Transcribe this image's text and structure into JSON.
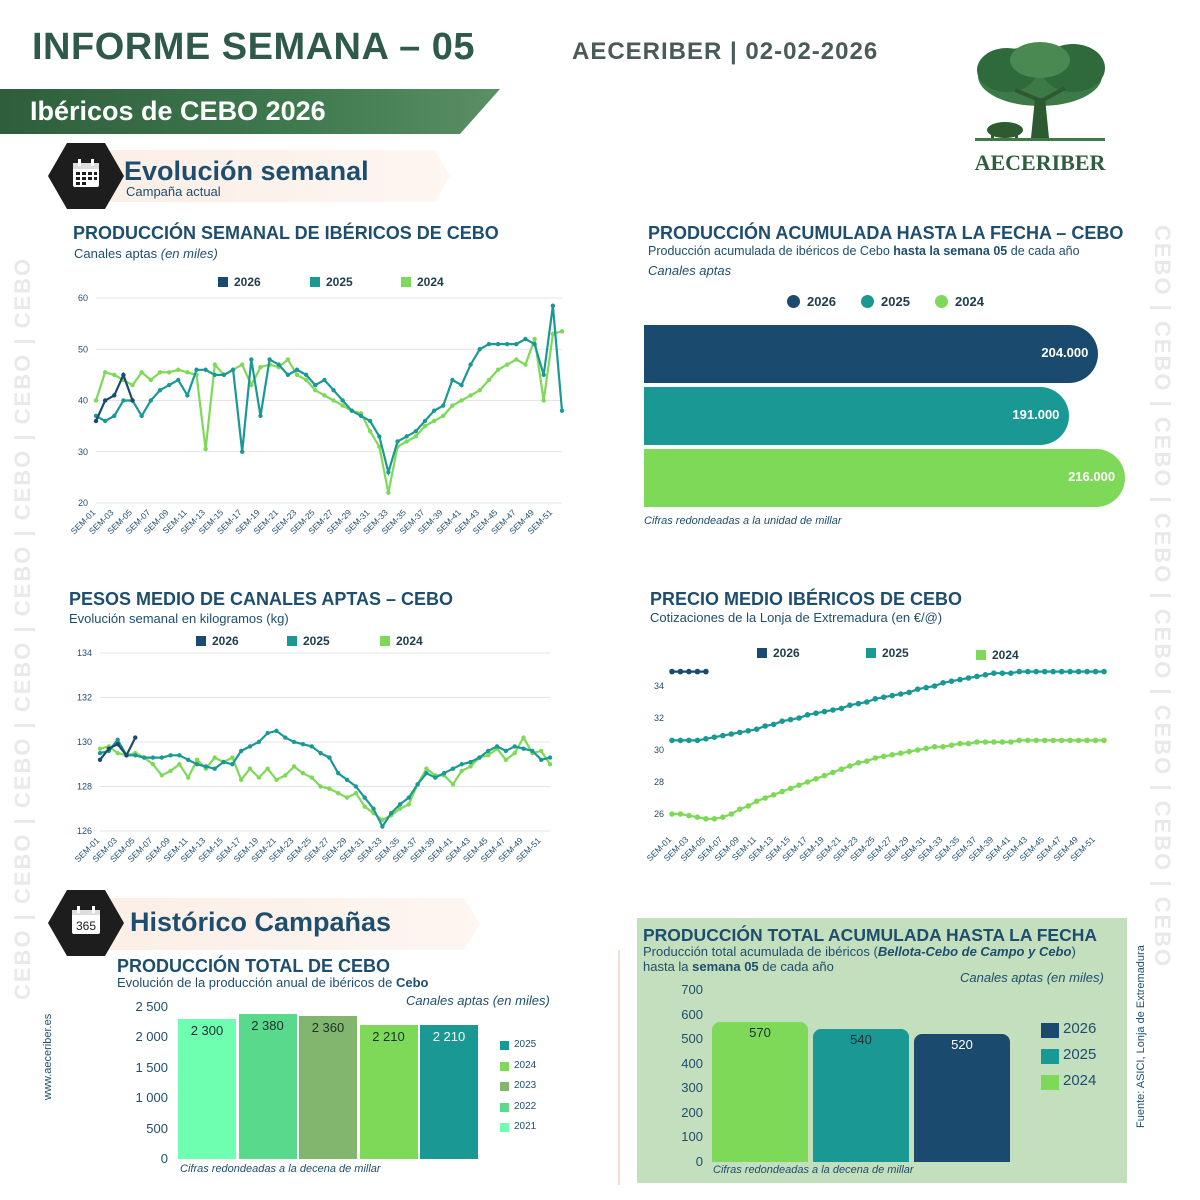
{
  "header": {
    "title": "INFORME SEMANA – 05",
    "org_date": "AECERIBER | 02-02-2026",
    "banner": "Ibéricos de CEBO 2026",
    "logo_text": "AECERIBER"
  },
  "sections": {
    "weekly": {
      "title": "Evolución semanal",
      "subtitle": "Campaña actual"
    },
    "history": {
      "title": "Histórico Campañas"
    }
  },
  "side": {
    "watermark": "CEBO | CEBO | CEBO | CEBO | CEBO | CEBO | CEBO | CEBO",
    "website": "www.aeceriber.es",
    "source": "Fuente: ASICI, Lonja de Extremadura"
  },
  "colors": {
    "c2026": "#1a4a6e",
    "c2025": "#1a9994",
    "c2024": "#7dd957",
    "c2023": "#82b56d",
    "c2022": "#59d98c",
    "c2021": "#6effb0"
  },
  "week_labels": [
    "SEM-01",
    "SEM-03",
    "SEM-05",
    "SEM-07",
    "SEM-09",
    "SEM-11",
    "SEM-13",
    "SEM-15",
    "SEM-17",
    "SEM-19",
    "SEM-21",
    "SEM-23",
    "SEM-25",
    "SEM-27",
    "SEM-29",
    "SEM-31",
    "SEM-33",
    "SEM-35",
    "SEM-37",
    "SEM-39",
    "SEM-41",
    "SEM-43",
    "SEM-45",
    "SEM-47",
    "SEM-49",
    "SEM-51"
  ],
  "chart_data": [
    {
      "id": "produccion_semanal",
      "type": "line",
      "title": "PRODUCCIÓN SEMANAL DE IBÉRICOS DE CEBO",
      "subtitle": "Canales aptas",
      "subtitle_italic": "(en miles)",
      "ylim": [
        20,
        60
      ],
      "yticks": [
        20,
        30,
        40,
        50,
        60
      ],
      "grid": true,
      "legend": "top",
      "series": [
        {
          "name": "2026",
          "values": [
            36,
            40,
            41,
            45,
            40
          ]
        },
        {
          "name": "2025",
          "values": [
            37,
            36,
            37,
            40,
            40,
            37,
            40,
            42,
            43,
            44,
            41,
            46,
            46,
            45,
            45,
            46,
            30,
            48,
            37,
            48,
            47,
            45,
            46,
            45,
            43,
            44,
            42,
            40,
            38,
            37,
            36,
            33,
            26,
            32,
            33,
            34,
            36,
            38,
            39,
            44,
            43,
            47,
            50,
            51,
            51,
            51,
            51,
            52,
            51,
            45,
            58.5,
            38
          ]
        },
        {
          "name": "2024",
          "values": [
            40,
            45.5,
            45,
            44,
            43,
            45.5,
            44,
            45.5,
            45.5,
            46,
            45.5,
            45,
            30.5,
            47,
            45,
            46,
            47,
            43,
            46.5,
            47,
            46.5,
            48,
            45,
            44,
            42,
            41,
            40,
            39,
            38,
            37.5,
            34,
            31,
            22,
            31,
            32,
            33,
            35,
            36,
            37,
            39,
            40,
            41,
            42,
            44,
            46,
            47,
            48,
            47,
            52,
            40,
            53,
            53.5
          ]
        }
      ]
    },
    {
      "id": "produccion_acumulada",
      "type": "bar",
      "title": "PRODUCCIÓN ACUMULADA HASTA LA FECHA – CEBO",
      "subtitle_pre": "Producción acumulada de ibéricos de Cebo ",
      "subtitle_bold": "hasta la semana 05",
      "subtitle_post": " de cada año",
      "subtitle2": "Canales aptas",
      "categories": [
        "2026",
        "2025",
        "2024"
      ],
      "values": [
        204000,
        191000,
        216000
      ],
      "labels": [
        "204.000",
        "191.000",
        "216.000"
      ],
      "note": "Cifras redondeadas a la unidad de millar"
    },
    {
      "id": "pesos_medio",
      "type": "line",
      "title": "PESOS MEDIO DE CANALES APTAS – CEBO",
      "subtitle": "Evolución semanal en kilogramos (kg)",
      "ylim": [
        126,
        134
      ],
      "yticks": [
        126,
        128,
        130,
        132,
        134
      ],
      "grid": true,
      "legend": "top",
      "series": [
        {
          "name": "2026",
          "values": [
            129.2,
            129.7,
            129.9,
            129.4,
            130.2
          ]
        },
        {
          "name": "2025",
          "values": [
            129.5,
            129.6,
            130.1,
            129.4,
            129.4,
            129.3,
            129.3,
            129.3,
            129.4,
            129.4,
            129.2,
            129.0,
            128.9,
            128.8,
            129.1,
            129.0,
            129.6,
            129.8,
            130.0,
            130.4,
            130.5,
            130.2,
            130.0,
            129.9,
            129.8,
            129.5,
            129.3,
            128.6,
            128.3,
            128.0,
            127.5,
            127.0,
            126.2,
            126.8,
            127.2,
            127.5,
            128.1,
            128.6,
            128.4,
            128.6,
            128.8,
            129.0,
            129.1,
            129.3,
            129.6,
            129.8,
            129.6,
            129.8,
            129.7,
            129.6,
            129.2,
            129.3
          ]
        },
        {
          "name": "2024",
          "values": [
            129.7,
            129.8,
            129.5,
            129.4,
            129.5,
            129.3,
            129.0,
            128.5,
            128.7,
            129.0,
            128.4,
            129.2,
            128.8,
            129.3,
            129.1,
            129.3,
            128.3,
            128.8,
            128.4,
            128.8,
            128.3,
            128.5,
            128.9,
            128.6,
            128.4,
            128.0,
            127.9,
            127.7,
            127.5,
            127.7,
            127.1,
            126.8,
            126.5,
            126.7,
            127.0,
            127.2,
            128.1,
            128.8,
            128.5,
            128.5,
            128.1,
            128.7,
            128.9,
            129.3,
            129.4,
            129.7,
            129.2,
            129.5,
            130.2,
            129.5,
            129.6,
            129.0
          ]
        }
      ]
    },
    {
      "id": "precio_medio",
      "type": "line",
      "title": "PRECIO MEDIO IBÉRICOS DE CEBO",
      "subtitle": "Cotizaciones de la Lonja de Extremadura (en €/@)",
      "ylim": [
        25,
        35.5
      ],
      "yticks": [
        26,
        28,
        30,
        32,
        34
      ],
      "grid": false,
      "legend": "top",
      "series": [
        {
          "name": "2026",
          "values": [
            34.9,
            34.9,
            34.9,
            34.9,
            34.9
          ]
        },
        {
          "name": "2025",
          "values": [
            30.6,
            30.6,
            30.6,
            30.6,
            30.7,
            30.8,
            30.9,
            31.0,
            31.1,
            31.2,
            31.3,
            31.5,
            31.6,
            31.8,
            31.9,
            32.0,
            32.2,
            32.3,
            32.4,
            32.5,
            32.6,
            32.8,
            32.9,
            33.0,
            33.2,
            33.3,
            33.4,
            33.5,
            33.6,
            33.8,
            33.9,
            34.0,
            34.2,
            34.3,
            34.4,
            34.5,
            34.6,
            34.7,
            34.8,
            34.8,
            34.8,
            34.9,
            34.9,
            34.9,
            34.9,
            34.9,
            34.9,
            34.9,
            34.9,
            34.9,
            34.9,
            34.9
          ]
        },
        {
          "name": "2024",
          "values": [
            26.0,
            26.0,
            25.9,
            25.8,
            25.7,
            25.7,
            25.8,
            26.0,
            26.3,
            26.5,
            26.8,
            27.0,
            27.2,
            27.4,
            27.6,
            27.8,
            28.0,
            28.2,
            28.4,
            28.6,
            28.8,
            29.0,
            29.2,
            29.3,
            29.5,
            29.6,
            29.7,
            29.8,
            29.9,
            30.0,
            30.1,
            30.2,
            30.2,
            30.3,
            30.4,
            30.4,
            30.5,
            30.5,
            30.5,
            30.5,
            30.5,
            30.6,
            30.6,
            30.6,
            30.6,
            30.6,
            30.6,
            30.6,
            30.6,
            30.6,
            30.6,
            30.6
          ]
        }
      ]
    },
    {
      "id": "produccion_total_cebo",
      "type": "bar",
      "title": "PRODUCCIÓN TOTAL DE CEBO",
      "subtitle_pre": "Evolución de la producción anual de ibéricos de ",
      "subtitle_bold": "Cebo",
      "unit_label": "Canales aptas (en miles)",
      "categories": [
        "2021",
        "2022",
        "2023",
        "2024",
        "2025"
      ],
      "values": [
        2300,
        2380,
        2360,
        2210,
        2210
      ],
      "labels": [
        "2 300",
        "2 380",
        "2 360",
        "2 210",
        "2 210"
      ],
      "ylim": [
        0,
        2500
      ],
      "yticks": [
        "0",
        "500",
        "1 000",
        "1 500",
        "2 000",
        "2 500"
      ],
      "legend_order": [
        "2025",
        "2024",
        "2023",
        "2022",
        "2021"
      ],
      "note": "Cifras redondeadas a la decena de millar"
    },
    {
      "id": "produccion_total_acumulada",
      "type": "bar",
      "title": "PRODUCCIÓN TOTAL ACUMULADA HASTA LA FECHA",
      "subtitle_pre": "Producción total acumulada de ibéricos (",
      "subtitle_bold": "Bellota-Cebo de Campo y Cebo",
      "subtitle_post": ")",
      "subtitle2_pre": "hasta la ",
      "subtitle2_bold": "semana 05",
      "subtitle2_post": " de cada año",
      "unit_label": "Canales aptas (en miles)",
      "categories": [
        "2024",
        "2025",
        "2026"
      ],
      "values": [
        570,
        540,
        520
      ],
      "ylim": [
        0,
        700
      ],
      "yticks": [
        0,
        100,
        200,
        300,
        400,
        500,
        600,
        700
      ],
      "legend_order": [
        "2026",
        "2025",
        "2024"
      ],
      "note": "Cifras redondeadas a la decena de millar"
    }
  ]
}
